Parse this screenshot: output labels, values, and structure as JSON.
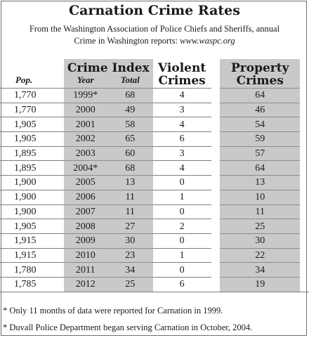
{
  "title": "Carnation Crime Rates",
  "subtitle_line1": "From the Washington Association of Police Chiefs and Sheriffs, annual",
  "subtitle_line2_prefix": "Crime in Washington reports: ",
  "subtitle_line2_url": "www.waspc.org",
  "headers": {
    "crime_index": "Crime Index",
    "violent_line1": "Violent",
    "violent_line2": "Crimes",
    "property_line1": "Property",
    "property_line2": "Crimes",
    "pop": "Pop.",
    "year": "Year",
    "total": "Total"
  },
  "rows": [
    {
      "pop": "1,770",
      "year": "1999*",
      "total": "68",
      "violent": "4",
      "property": "64"
    },
    {
      "pop": "1,770",
      "year": "2000",
      "total": "49",
      "violent": "3",
      "property": "46"
    },
    {
      "pop": "1,905",
      "year": "2001",
      "total": "58",
      "violent": "4",
      "property": "54"
    },
    {
      "pop": "1,905",
      "year": "2002",
      "total": "65",
      "violent": "6",
      "property": "59"
    },
    {
      "pop": "1,895",
      "year": "2003",
      "total": "60",
      "violent": "3",
      "property": "57"
    },
    {
      "pop": "1,895",
      "year": "2004*",
      "total": "68",
      "violent": "4",
      "property": "64"
    },
    {
      "pop": "1,900",
      "year": "2005",
      "total": "13",
      "violent": "0",
      "property": "13"
    },
    {
      "pop": "1,900",
      "year": "2006",
      "total": "11",
      "violent": "1",
      "property": "10"
    },
    {
      "pop": "1,900",
      "year": "2007",
      "total": "11",
      "violent": "0",
      "property": "11"
    },
    {
      "pop": "1,905",
      "year": "2008",
      "total": "27",
      "violent": "2",
      "property": "25"
    },
    {
      "pop": "1,915",
      "year": "2009",
      "total": "30",
      "violent": "0",
      "property": "30"
    },
    {
      "pop": "1,915",
      "year": "2010",
      "total": "23",
      "violent": "1",
      "property": "22"
    },
    {
      "pop": "1,780",
      "year": "2011",
      "total": "34",
      "violent": "0",
      "property": "34"
    },
    {
      "pop": "1,785",
      "year": "2012",
      "total": "25",
      "violent": "6",
      "property": "19"
    }
  ],
  "footnotes": [
    "* Only 11 months of data were reported for Carnation in 1999.",
    "* Duvall Police Department began serving Carnation in October, 2004."
  ],
  "colors": {
    "shade": "#c9c9c9",
    "rule": "#7f7f7f"
  }
}
